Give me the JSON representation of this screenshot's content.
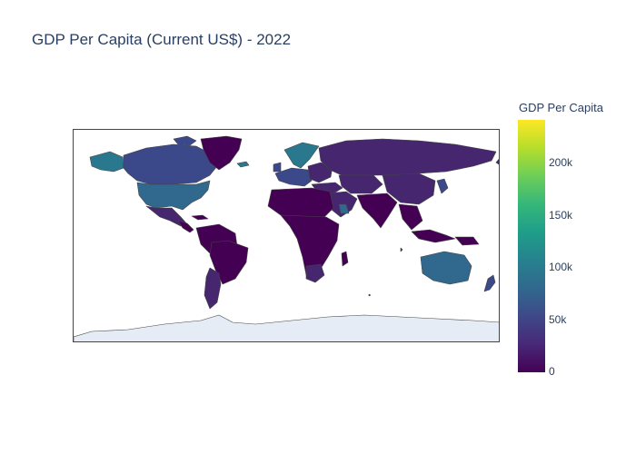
{
  "title": "GDP Per Capita (Current US$) - 2022",
  "colorbar": {
    "title": "GDP Per Capita",
    "range": [
      0,
      240000
    ],
    "ticks": [
      "0",
      "50k",
      "100k",
      "150k",
      "200k"
    ],
    "tick_values": [
      0,
      50000,
      100000,
      150000,
      200000
    ],
    "colorscale": "Viridis"
  },
  "map": {
    "projection": "equirectangular",
    "colors": {
      "very_low": "#440154",
      "low": "#46266f",
      "mid_low": "#3b4889",
      "mid": "#31688e",
      "mid_high": "#2a788e",
      "antarctica": "#e5ecf6",
      "border": "#444444"
    }
  }
}
